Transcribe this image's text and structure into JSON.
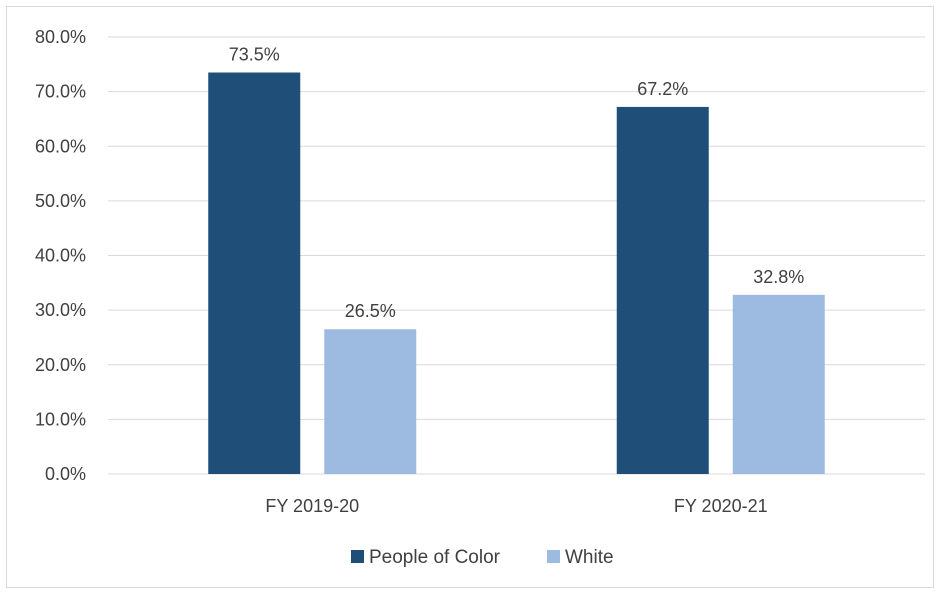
{
  "chart_data": {
    "type": "bar",
    "categories": [
      "FY 2019-20",
      "FY 2020-21"
    ],
    "series": [
      {
        "name": "People of Color",
        "values": [
          73.5,
          67.2
        ],
        "labels": [
          "73.5%",
          "67.2%"
        ],
        "color": "#1f4e79"
      },
      {
        "name": "White",
        "values": [
          26.5,
          32.8
        ],
        "labels": [
          "26.5%",
          "32.8%"
        ],
        "color": "#9dbbe1"
      }
    ],
    "ylim": [
      0,
      80
    ],
    "yticks": [
      "0.0%",
      "10.0%",
      "20.0%",
      "30.0%",
      "40.0%",
      "50.0%",
      "60.0%",
      "70.0%",
      "80.0%"
    ],
    "grid": true,
    "legend_position": "bottom",
    "colors": {
      "gridline": "#d9d9d9",
      "axis_line": "#d9d9d9",
      "text": "#404040"
    }
  }
}
